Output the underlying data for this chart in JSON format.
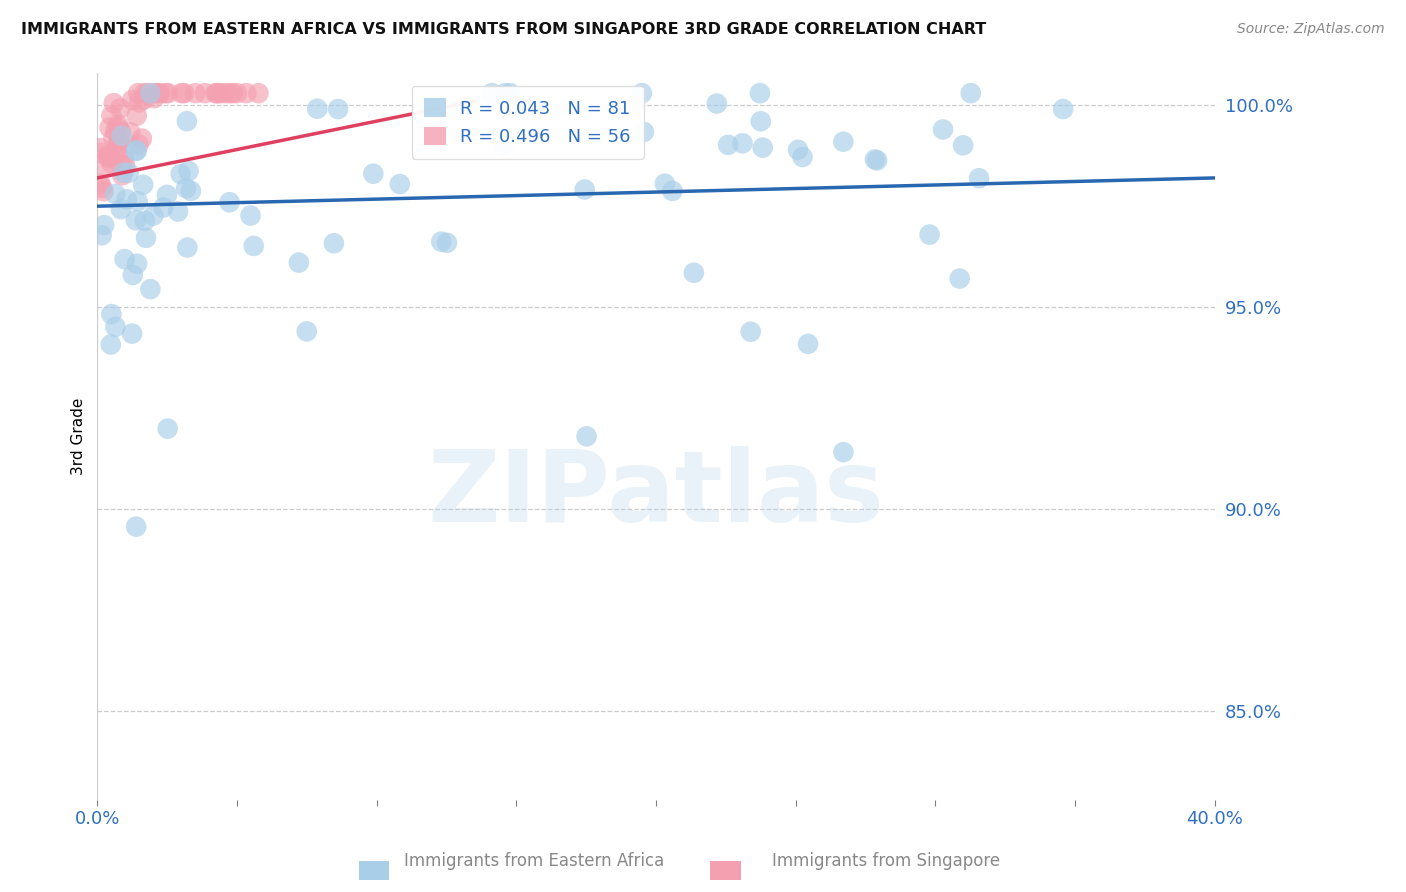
{
  "title": "IMMIGRANTS FROM EASTERN AFRICA VS IMMIGRANTS FROM SINGAPORE 3RD GRADE CORRELATION CHART",
  "source": "Source: ZipAtlas.com",
  "ylabel": "3rd Grade",
  "legend_label_blue": "Immigrants from Eastern Africa",
  "legend_label_pink": "Immigrants from Singapore",
  "R_blue": 0.043,
  "N_blue": 81,
  "R_pink": 0.496,
  "N_pink": 56,
  "xlim": [
    0.0,
    0.4
  ],
  "ylim": [
    0.828,
    1.008
  ],
  "yticks": [
    0.85,
    0.9,
    0.95,
    1.0
  ],
  "ytick_labels": [
    "85.0%",
    "90.0%",
    "95.0%",
    "100.0%"
  ],
  "xticks": [
    0.0,
    0.05,
    0.1,
    0.15,
    0.2,
    0.25,
    0.3,
    0.35,
    0.4
  ],
  "xtick_labels": [
    "0.0%",
    "",
    "",
    "",
    "",
    "",
    "",
    "",
    "40.0%"
  ],
  "blue_color": "#A8CEE8",
  "pink_color": "#F4A0B0",
  "trendline_blue_color": "#2968B0",
  "trendline_pink_color": "#E04060",
  "watermark": "ZIPatlas",
  "trendline_blue_x0": 0.0,
  "trendline_blue_y0": 0.975,
  "trendline_blue_x1": 0.4,
  "trendline_blue_y1": 0.982,
  "trendline_pink_x0": 0.0,
  "trendline_pink_y0": 0.982,
  "trendline_pink_x1": 0.135,
  "trendline_pink_y1": 1.001
}
